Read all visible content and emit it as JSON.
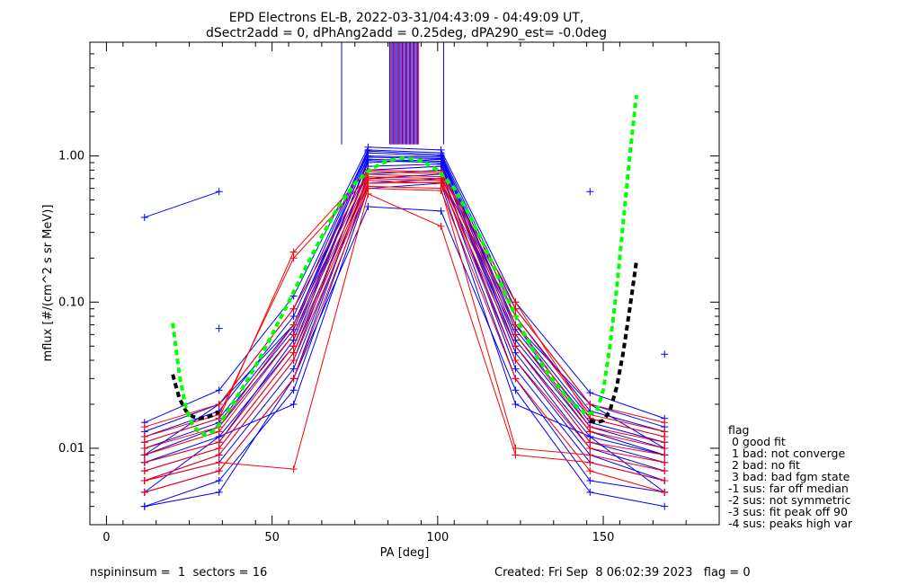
{
  "chart_data": {
    "type": "line",
    "title": "EPD Electrons EL-B, 2022-03-31/04:43:09 - 04:49:09 UT,",
    "subtitle": "dSectr2add = 0, dPhAng2add = 0.25deg, dPA290_est=  -0.0deg",
    "xlabel": "PA [deg]",
    "ylabel": "mflux [#/(cm^2 s sr MeV)]",
    "xlim": [
      -5,
      185
    ],
    "ylim": [
      0.003,
      6.0
    ],
    "yscale": "log",
    "x_ticks": [
      {
        "value": 0,
        "label": "0"
      },
      {
        "value": 50,
        "label": "50"
      },
      {
        "value": 100,
        "label": "100"
      },
      {
        "value": 150,
        "label": "150"
      }
    ],
    "y_ticks": [
      {
        "value": 0.01,
        "label": "0.01"
      },
      {
        "value": 0.1,
        "label": "0.10"
      },
      {
        "value": 1.0,
        "label": "1.00"
      }
    ],
    "pa_bins": [
      11.5,
      34,
      56.5,
      79,
      101,
      123.5,
      146,
      168.5
    ],
    "spin_profiles": [
      {
        "color": "#0000ff",
        "values": [
          0.008,
          0.012,
          0.05,
          0.95,
          0.92,
          0.05,
          0.012,
          0.009
        ]
      },
      {
        "color": "#0000ff",
        "values": [
          0.006,
          0.009,
          0.04,
          0.85,
          0.88,
          0.045,
          0.01,
          0.007
        ]
      },
      {
        "color": "#0000ff",
        "values": [
          0.011,
          0.016,
          0.07,
          1.05,
          1.0,
          0.07,
          0.016,
          0.012
        ]
      },
      {
        "color": "#0000ff",
        "values": [
          0.005,
          0.007,
          0.03,
          0.75,
          0.8,
          0.035,
          0.008,
          0.006
        ]
      },
      {
        "color": "#0000ff",
        "values": [
          0.013,
          0.02,
          0.09,
          1.1,
          1.05,
          0.09,
          0.02,
          0.014
        ]
      },
      {
        "color": "#0000ff",
        "values": [
          0.004,
          0.006,
          0.025,
          0.65,
          0.7,
          0.03,
          0.006,
          0.005
        ]
      },
      {
        "color": "#0000ff",
        "values": [
          0.009,
          0.014,
          0.06,
          0.9,
          0.95,
          0.06,
          0.014,
          0.01
        ]
      },
      {
        "color": "#0000ff",
        "values": [
          0.007,
          0.01,
          0.045,
          0.8,
          0.85,
          0.05,
          0.011,
          0.008
        ]
      },
      {
        "color": "#0000ff",
        "values": [
          0.015,
          0.025,
          0.11,
          1.15,
          1.1,
          0.1,
          0.024,
          0.016
        ]
      },
      {
        "color": "#0000ff",
        "values": [
          0.006,
          0.008,
          0.035,
          0.7,
          0.75,
          0.04,
          0.009,
          0.006
        ]
      },
      {
        "color": "#0000ff",
        "values": [
          0.01,
          0.015,
          0.065,
          1.0,
          0.98,
          0.065,
          0.015,
          0.011
        ]
      },
      {
        "color": "#0000ff",
        "values": [
          0.012,
          0.018,
          0.08,
          1.08,
          1.02,
          0.08,
          0.018,
          0.013
        ]
      },
      {
        "color": "#0000ff",
        "values": [
          0.005,
          0.012,
          0.02,
          0.6,
          0.65,
          0.02,
          0.012,
          0.005
        ]
      },
      {
        "color": "#0000ff",
        "values": [
          0.008,
          0.011,
          0.055,
          0.93,
          0.9,
          0.055,
          0.013,
          0.009
        ]
      },
      {
        "color": "#0000ff",
        "values": [
          0.004,
          0.005,
          0.03,
          0.45,
          0.42,
          0.025,
          0.005,
          0.004
        ]
      },
      {
        "color": "#0000ff",
        "values": [
          0.009,
          0.02,
          0.07,
          0.98,
          0.96,
          0.07,
          0.02,
          0.01
        ]
      },
      {
        "color": "#ff0000",
        "values": [
          0.009,
          0.013,
          0.06,
          0.7,
          0.68,
          0.06,
          0.013,
          0.01
        ]
      },
      {
        "color": "#ff0000",
        "values": [
          0.007,
          0.01,
          0.045,
          0.65,
          0.66,
          0.04,
          0.01,
          0.008
        ]
      },
      {
        "color": "#ff0000",
        "values": [
          0.012,
          0.017,
          0.2,
          0.72,
          0.7,
          0.08,
          0.017,
          0.013
        ]
      },
      {
        "color": "#ff0000",
        "values": [
          0.006,
          0.008,
          0.0072,
          0.55,
          0.33,
          0.009,
          0.008,
          0.006
        ]
      },
      {
        "color": "#ff0000",
        "values": [
          0.01,
          0.014,
          0.07,
          0.75,
          0.72,
          0.07,
          0.014,
          0.011
        ]
      },
      {
        "color": "#ff0000",
        "values": [
          0.008,
          0.011,
          0.05,
          0.68,
          0.65,
          0.05,
          0.011,
          0.009
        ]
      },
      {
        "color": "#ff0000",
        "values": [
          0.014,
          0.02,
          0.09,
          0.78,
          0.76,
          0.09,
          0.02,
          0.015
        ]
      },
      {
        "color": "#ff0000",
        "values": [
          0.005,
          0.007,
          0.03,
          0.6,
          0.58,
          0.03,
          0.007,
          0.005
        ]
      },
      {
        "color": "#ff0000",
        "values": [
          0.011,
          0.016,
          0.22,
          0.8,
          0.78,
          0.1,
          0.016,
          0.012
        ]
      },
      {
        "color": "#ff0000",
        "values": [
          0.006,
          0.009,
          0.04,
          0.62,
          0.6,
          0.01,
          0.009,
          0.007
        ]
      }
    ],
    "extra_points": [
      {
        "color": "#0000ff",
        "x": 11.5,
        "y": 0.38
      },
      {
        "color": "#0000ff",
        "x": 34,
        "y": 0.57
      },
      {
        "color": "#0000ff",
        "x": 146,
        "y": 0.57
      },
      {
        "color": "#0000ff",
        "x": 168.5,
        "y": 0.044
      },
      {
        "color": "#0000ff",
        "x": 34,
        "y": 0.066
      }
    ],
    "fit_green": {
      "color": "#00ff00",
      "x": [
        20,
        22,
        24,
        26,
        28,
        30,
        32,
        34,
        38,
        42,
        46,
        50,
        55,
        60,
        65,
        70,
        75,
        80,
        85,
        90,
        95,
        100,
        105,
        110,
        115,
        120,
        125,
        130,
        135,
        140,
        145,
        148,
        150,
        152,
        154,
        156,
        158,
        160
      ],
      "y": [
        0.072,
        0.032,
        0.019,
        0.0145,
        0.0128,
        0.0124,
        0.013,
        0.0145,
        0.02,
        0.028,
        0.04,
        0.06,
        0.1,
        0.17,
        0.28,
        0.45,
        0.65,
        0.82,
        0.93,
        0.97,
        0.93,
        0.8,
        0.6,
        0.38,
        0.22,
        0.12,
        0.068,
        0.042,
        0.029,
        0.021,
        0.017,
        0.018,
        0.025,
        0.05,
        0.12,
        0.35,
        1.0,
        2.6
      ]
    },
    "fit_black": {
      "color": "#000000",
      "x": [
        20,
        22,
        24,
        26,
        28,
        30,
        32,
        34,
        146,
        148,
        150,
        152,
        154,
        156,
        158,
        160
      ],
      "y": [
        0.032,
        0.022,
        0.018,
        0.0165,
        0.016,
        0.0162,
        0.0168,
        0.0178,
        0.0155,
        0.015,
        0.0155,
        0.018,
        0.026,
        0.045,
        0.09,
        0.19
      ]
    },
    "vertical_features": [
      {
        "color": "#0000ff",
        "x": 71,
        "y_bottom": 1.2,
        "y_top": 6.0
      },
      {
        "color": "#0000ff",
        "x": 101.8,
        "y_bottom": 1.2,
        "y_top": 6.0
      }
    ],
    "peak_block": {
      "x_from": 85.5,
      "x_to": 94.5,
      "y_bottom": 1.2,
      "y_top": 6.0
    },
    "legend": {
      "title": "flag",
      "entries": [
        " 0 good fit",
        " 1 bad: not converge",
        " 2 bad: no fit",
        " 3 bad: bad fgm state",
        "-1 sus: far off median",
        "-2 sus: not symmetric",
        "-3 sus: fit peak off 90",
        "-4 sus: peaks high var"
      ]
    }
  },
  "footer": {
    "left": "nspininsum =  1  sectors = 16",
    "right": "Created: Fri Sep  8 06:02:39 2023   flag = 0"
  }
}
